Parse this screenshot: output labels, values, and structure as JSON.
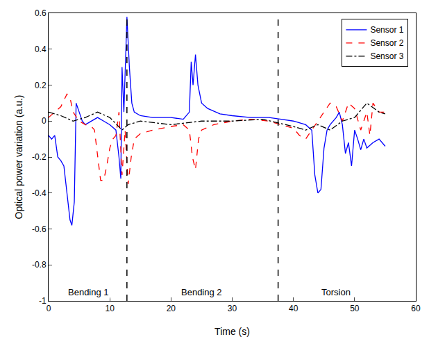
{
  "chart_data": {
    "type": "line",
    "x_label": "Time (s)",
    "y_label": "Optical power variation (a.u.)",
    "xlim": [
      0,
      60
    ],
    "xticks": [
      0,
      10,
      20,
      30,
      40,
      50,
      60
    ],
    "ylim": [
      -1,
      0.6
    ],
    "yticks": [
      -1,
      -0.8,
      -0.6,
      -0.4,
      -0.2,
      0,
      0.2,
      0.4,
      0.6
    ],
    "grid": false,
    "legend": "top right",
    "vlines": [
      12.8,
      37.5
    ],
    "annotations": [
      {
        "text": "Bending 1",
        "x": 6.5,
        "y": -0.95
      },
      {
        "text": "Bending 2",
        "x": 25,
        "y": -0.95
      },
      {
        "text": "Torsion",
        "x": 47,
        "y": -0.95
      }
    ],
    "series": [
      {
        "name": "Sensor 1",
        "color": "#0000ff",
        "line_style": "solid",
        "x": [
          0,
          0.5,
          1,
          1.5,
          2,
          2.5,
          3,
          3.5,
          3.8,
          4.2,
          4.5,
          5,
          5.5,
          6,
          7,
          8,
          9,
          10,
          11,
          11.5,
          11.8,
          12,
          12.3,
          12.8,
          13.2,
          13.6,
          14,
          15,
          17,
          20,
          22,
          23,
          23.3,
          23.6,
          24,
          24.4,
          25,
          26,
          28,
          30,
          33,
          36,
          38,
          40,
          42,
          43,
          43.5,
          44,
          44.5,
          45,
          45.5,
          46,
          47,
          47.5,
          48,
          48.5,
          49,
          49.5,
          50,
          50.5,
          51,
          51.5,
          52,
          53,
          54,
          55
        ],
        "values": [
          -0.08,
          -0.1,
          -0.08,
          -0.2,
          -0.22,
          -0.25,
          -0.4,
          -0.55,
          -0.58,
          -0.45,
          0.1,
          0.05,
          0.0,
          -0.02,
          0.0,
          0.02,
          0.0,
          -0.02,
          -0.05,
          -0.2,
          -0.32,
          0.3,
          0.05,
          0.58,
          0.3,
          0.1,
          0.05,
          0.03,
          0.02,
          0.02,
          0.01,
          0.05,
          0.33,
          0.2,
          0.37,
          0.2,
          0.1,
          0.07,
          0.04,
          0.03,
          0.02,
          0.02,
          0.01,
          0.0,
          -0.02,
          -0.05,
          -0.3,
          -0.4,
          -0.38,
          -0.15,
          -0.05,
          -0.02,
          0.02,
          0.05,
          -0.02,
          -0.18,
          -0.12,
          -0.25,
          -0.05,
          -0.1,
          -0.16,
          -0.1,
          -0.15,
          -0.12,
          -0.1,
          -0.14
        ]
      },
      {
        "name": "Sensor 2",
        "color": "#ff0000",
        "line_style": "dash",
        "x": [
          0,
          1,
          2,
          3,
          3.5,
          4,
          5,
          6,
          7,
          7.5,
          8,
          8.5,
          9,
          9.5,
          10,
          10.5,
          11,
          11.5,
          12,
          12.5,
          13,
          13.5,
          14,
          15,
          17,
          20,
          22,
          23,
          23.5,
          24,
          24.5,
          25,
          27,
          30,
          33,
          36,
          38,
          40,
          41,
          42,
          43,
          44,
          45,
          46,
          47,
          48,
          49,
          50,
          51,
          52,
          52.5,
          53,
          54,
          55
        ],
        "values": [
          0.02,
          0.05,
          0.08,
          0.15,
          0.13,
          0.05,
          0.0,
          -0.02,
          -0.03,
          -0.05,
          -0.2,
          -0.33,
          -0.33,
          -0.25,
          -0.15,
          -0.1,
          -0.08,
          0.05,
          -0.3,
          -0.05,
          -0.35,
          -0.2,
          -0.1,
          -0.07,
          -0.05,
          -0.03,
          -0.02,
          -0.05,
          -0.2,
          -0.27,
          -0.1,
          -0.05,
          -0.02,
          0.0,
          0.01,
          0.0,
          -0.02,
          -0.04,
          -0.08,
          -0.1,
          -0.05,
          0.0,
          0.05,
          0.1,
          0.08,
          0.0,
          0.1,
          0.07,
          -0.05,
          0.05,
          -0.08,
          0.1,
          0.05,
          0.05
        ]
      },
      {
        "name": "Sensor 3",
        "color": "#000000",
        "line_style": "dashdot",
        "x": [
          0,
          2,
          4,
          6,
          8,
          10,
          12,
          13,
          15,
          20,
          25,
          30,
          35,
          40,
          42,
          44,
          46,
          48,
          50,
          52,
          54,
          55
        ],
        "values": [
          0.05,
          0.03,
          0.0,
          0.02,
          0.05,
          0.02,
          -0.05,
          -0.02,
          0.0,
          -0.02,
          0.0,
          0.0,
          0.01,
          -0.03,
          -0.05,
          -0.02,
          -0.05,
          0.0,
          0.02,
          0.1,
          0.05,
          0.04
        ]
      }
    ]
  }
}
